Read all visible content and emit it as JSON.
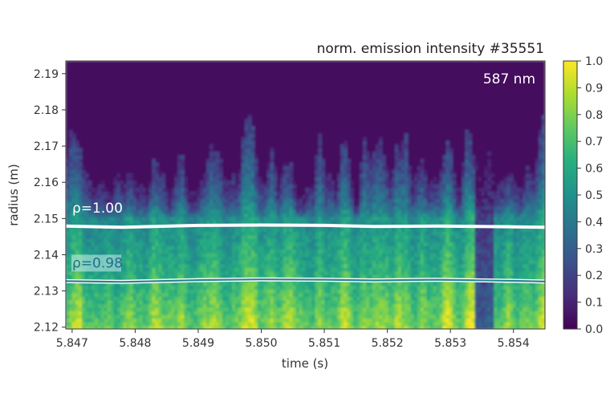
{
  "chart_data": {
    "type": "heatmap",
    "title": "norm. emission intensity #35551",
    "annotation": "587 nm",
    "xlabel": "time (s)",
    "ylabel": "radius (m)",
    "xlim": [
      5.8469,
      5.8545
    ],
    "ylim": [
      2.1195,
      2.1935
    ],
    "xticks": [
      "5.847",
      "5.848",
      "5.849",
      "5.850",
      "5.851",
      "5.852",
      "5.853",
      "5.854"
    ],
    "xtick_values": [
      5.847,
      5.848,
      5.849,
      5.85,
      5.851,
      5.852,
      5.853,
      5.854
    ],
    "yticks": [
      "2.12",
      "2.13",
      "2.14",
      "2.15",
      "2.16",
      "2.17",
      "2.18",
      "2.19"
    ],
    "ytick_values": [
      2.12,
      2.13,
      2.14,
      2.15,
      2.16,
      2.17,
      2.18,
      2.19
    ],
    "colorbar": {
      "colormap": "viridis",
      "range": [
        0.0,
        1.0
      ],
      "ticks": [
        "0.0",
        "0.1",
        "0.2",
        "0.3",
        "0.4",
        "0.5",
        "0.6",
        "0.7",
        "0.8",
        "0.9",
        "1.0"
      ],
      "tick_values": [
        0.0,
        0.1,
        0.2,
        0.3,
        0.4,
        0.5,
        0.6,
        0.7,
        0.8,
        0.9,
        1.0
      ]
    },
    "contours": [
      {
        "label": "ρ=1.00",
        "style": "thick",
        "color": "#ffffff",
        "x": [
          5.8469,
          5.8478,
          5.849,
          5.85,
          5.851,
          5.8518,
          5.8528,
          5.854,
          5.8545
        ],
        "y": [
          2.1479,
          2.1476,
          2.1481,
          2.1482,
          2.1481,
          2.1478,
          2.1479,
          2.1477,
          2.1476
        ]
      },
      {
        "label": "ρ=0.98",
        "style": "double",
        "color": "#ffffff",
        "x": [
          5.8469,
          5.8478,
          5.849,
          5.85,
          5.851,
          5.8518,
          5.8528,
          5.854,
          5.8545
        ],
        "y": [
          2.1327,
          2.1325,
          2.133,
          2.1332,
          2.1331,
          2.1329,
          2.1331,
          2.1328,
          2.1326
        ]
      }
    ]
  }
}
